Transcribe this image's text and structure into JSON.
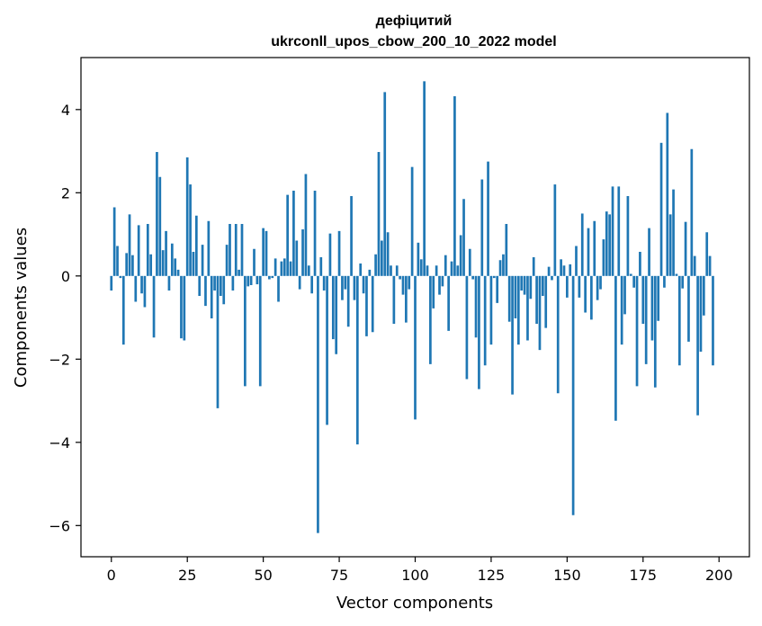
{
  "chart_data": {
    "type": "bar",
    "title": "дефіцитий",
    "subtitle": "ukrconll_upos_cbow_200_10_2022 model",
    "xlabel": "Vector components",
    "ylabel": "Components values",
    "xlim": [
      -10,
      210
    ],
    "ylim": [
      -6.75,
      5.25
    ],
    "xticks": [
      0,
      25,
      50,
      75,
      100,
      125,
      150,
      175,
      200
    ],
    "yticks": [
      -6,
      -4,
      -2,
      0,
      2,
      4
    ],
    "ytick_labels": [
      "−6",
      "−4",
      "−2",
      "0",
      "2",
      "4"
    ],
    "grid": false,
    "legend": "none",
    "bar_color": "#1f77b4",
    "values": [
      -0.35,
      1.65,
      0.72,
      -0.05,
      -1.65,
      0.55,
      1.48,
      0.5,
      -0.62,
      1.22,
      -0.42,
      -0.75,
      1.25,
      0.52,
      -1.48,
      2.98,
      2.38,
      0.62,
      1.08,
      -0.35,
      0.78,
      0.42,
      0.15,
      -1.5,
      -1.55,
      2.85,
      2.2,
      0.58,
      1.45,
      -0.48,
      0.75,
      -0.72,
      1.32,
      -1.02,
      -0.35,
      -3.18,
      -0.48,
      -0.68,
      0.75,
      1.25,
      -0.35,
      1.25,
      0.15,
      1.25,
      -2.65,
      -0.25,
      -0.22,
      0.65,
      -0.2,
      -2.65,
      1.15,
      1.08,
      -0.08,
      -0.05,
      0.42,
      -0.62,
      0.35,
      0.42,
      1.95,
      0.35,
      2.05,
      0.85,
      -0.32,
      1.12,
      2.45,
      0.25,
      -0.42,
      2.05,
      -6.18,
      0.45,
      -0.35,
      -3.58,
      1.02,
      -1.52,
      -1.88,
      1.08,
      -0.58,
      -0.32,
      -1.22,
      1.92,
      -0.58,
      -4.05,
      0.3,
      -0.42,
      -1.45,
      0.15,
      -1.35,
      0.52,
      2.98,
      0.85,
      4.42,
      1.05,
      0.25,
      -1.15,
      0.25,
      -0.08,
      -0.45,
      -1.12,
      -0.32,
      2.62,
      -3.45,
      0.8,
      0.4,
      4.68,
      0.25,
      -2.12,
      -0.78,
      0.25,
      -0.45,
      -0.25,
      0.5,
      -1.32,
      0.35,
      4.32,
      0.25,
      0.98,
      1.85,
      -2.48,
      0.65,
      -0.08,
      -1.48,
      -2.72,
      2.32,
      -2.15,
      2.75,
      -1.65,
      -0.05,
      -0.65,
      0.38,
      0.52,
      1.25,
      -1.1,
      -2.85,
      -1.02,
      -1.65,
      -0.35,
      -0.45,
      -1.55,
      -0.55,
      0.45,
      -1.15,
      -1.78,
      -0.48,
      -1.25,
      0.22,
      -0.1,
      2.2,
      -2.82,
      0.4,
      0.25,
      -0.52,
      0.28,
      -5.75,
      0.72,
      -0.52,
      1.5,
      -0.88,
      1.15,
      -1.05,
      1.32,
      -0.58,
      -0.32,
      0.88,
      1.55,
      1.48,
      2.15,
      -3.48,
      2.15,
      -1.65,
      -0.92,
      1.92,
      0.05,
      -0.28,
      -2.65,
      0.58,
      -1.15,
      -2.12,
      1.15,
      -1.55,
      -2.68,
      -1.08,
      3.2,
      -0.28,
      3.92,
      1.48,
      2.08,
      0.05,
      -2.15,
      -0.3,
      1.3,
      -1.58,
      3.05,
      0.48,
      -3.35,
      -1.82,
      -0.95,
      1.05,
      0.48,
      -2.15
    ]
  }
}
